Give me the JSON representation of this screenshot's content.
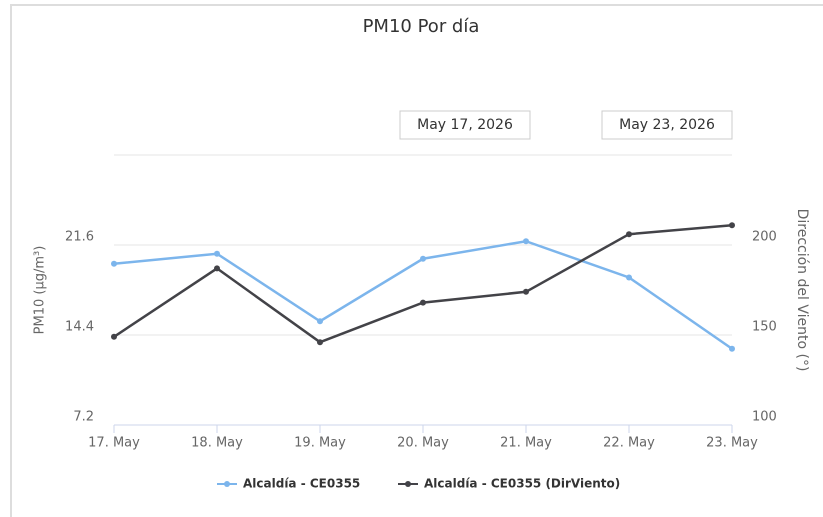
{
  "chart_data": {
    "type": "line",
    "title": "PM10 Por día",
    "range_from": "May 17, 2026",
    "range_to": "May 23, 2026",
    "categories": [
      "17. May",
      "18. May",
      "19. May",
      "20. May",
      "21. May",
      "22. May",
      "23. May"
    ],
    "ylabel": "PM10 (µg/m³)",
    "y2label": "Dirección del Viento (°)",
    "ylim": [
      7.2,
      28.8
    ],
    "yticks": [
      7.2,
      14.4,
      21.6
    ],
    "y2lim": [
      100,
      250
    ],
    "y2ticks": [
      100,
      150,
      200
    ],
    "grid": true,
    "legend": "bottom",
    "series": [
      {
        "name": "Alcaldía - CE0355",
        "color": "#7cb5ec",
        "values": [
          20.1,
          20.9,
          15.5,
          20.5,
          21.9,
          19.0,
          13.3
        ]
      },
      {
        "name": "Alcaldía - CE0355 (DirViento)",
        "color": "#434348",
        "axis": "y2",
        "values": [
          149,
          187,
          146,
          168,
          174,
          206,
          211
        ]
      }
    ]
  }
}
